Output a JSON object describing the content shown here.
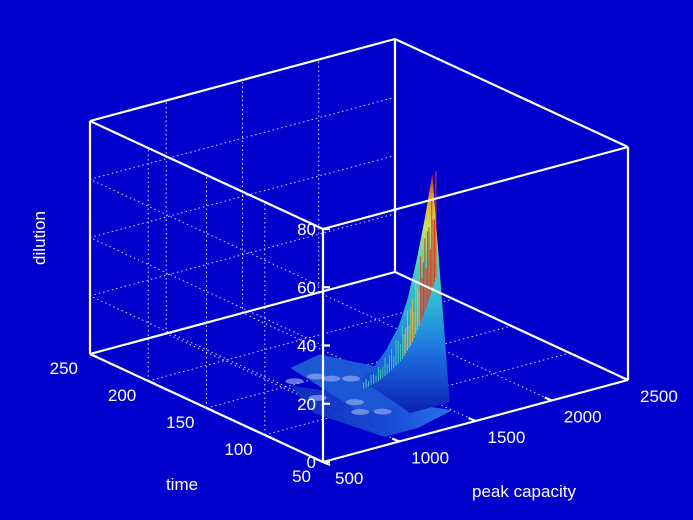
{
  "chart_data": {
    "type": "surface",
    "title": "",
    "xlabel": "peak capacity",
    "ylabel": "time",
    "zlabel": "dilution",
    "xlim": [
      500,
      2500
    ],
    "ylim": [
      50,
      250
    ],
    "zlim": [
      0,
      80
    ],
    "x_ticks": [
      "500",
      "1000",
      "1500",
      "2000",
      "2500"
    ],
    "y_ticks": [
      "50",
      "100",
      "150",
      "200",
      "250"
    ],
    "z_ticks": [
      "0",
      "20",
      "40",
      "60",
      "80"
    ],
    "grid": true,
    "colormap": "jet",
    "background_color": "#0000cc",
    "axis_color": "#ffffff",
    "surface_ridge": {
      "x": [
        1240,
        1300,
        1350,
        1400,
        1430,
        1460,
        1480,
        1500
      ],
      "peak_dilution": [
        6,
        10,
        16,
        24,
        34,
        48,
        62,
        78
      ]
    },
    "time_range_of_surface": [
      60,
      150
    ]
  }
}
